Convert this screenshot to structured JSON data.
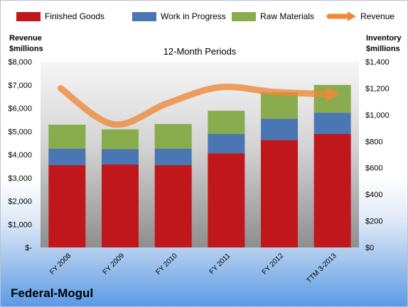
{
  "company": "Federal-Mogul",
  "chart_data": {
    "type": "bar",
    "stacked": true,
    "title": "12-Month Periods",
    "categories": [
      "FY 2008",
      "FY 2009",
      "FY 2010",
      "FY 2011",
      "FY 2012",
      "TTM 3-2013"
    ],
    "left_axis": {
      "label_lines": [
        "Revenue",
        "$millions"
      ],
      "ylim": [
        0,
        8000
      ],
      "ticks": [
        "$-",
        "$1,000",
        "$2,000",
        "$3,000",
        "$4,000",
        "$5,000",
        "$6,000",
        "$7,000",
        "$8,000"
      ]
    },
    "right_axis": {
      "label_lines": [
        "Inventory",
        "$millions"
      ],
      "ylim": [
        0,
        1400
      ],
      "ticks": [
        "$0",
        "$200",
        "$400",
        "$600",
        "$800",
        "$1,000",
        "$1,200",
        "$1,400"
      ]
    },
    "series": [
      {
        "name": "Finished Goods",
        "color": "#c0171c",
        "axis": "right",
        "values": [
          620,
          625,
          620,
          710,
          810,
          855
        ]
      },
      {
        "name": "Work in Progress",
        "color": "#4a76b4",
        "axis": "right",
        "values": [
          125,
          115,
          125,
          145,
          160,
          160
        ]
      },
      {
        "name": "Raw Materials",
        "color": "#88ac4e",
        "axis": "right",
        "values": [
          180,
          150,
          185,
          175,
          200,
          210
        ]
      },
      {
        "name": "Revenue",
        "type": "line",
        "color": "#ee8a3a",
        "axis": "left",
        "values": [
          6850,
          5300,
          6200,
          6900,
          6700,
          6600
        ]
      }
    ],
    "legend_position": "top",
    "grid": false
  }
}
